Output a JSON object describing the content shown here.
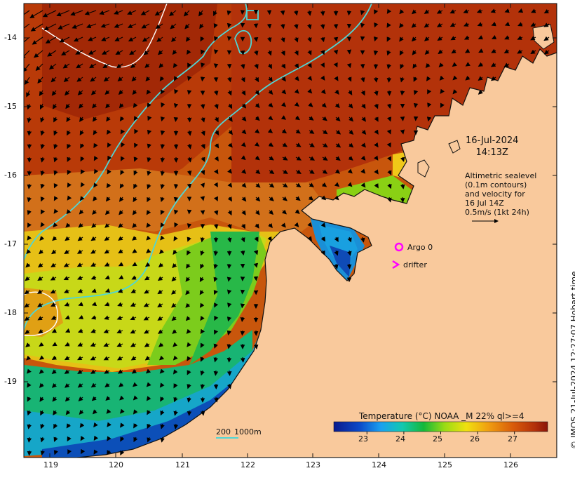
{
  "map": {
    "lon_ticks": [
      "119",
      "120",
      "121",
      "122",
      "123",
      "124",
      "125",
      "126"
    ],
    "lat_ticks": [
      "-14",
      "-15",
      "-16",
      "-17",
      "-18",
      "-19"
    ],
    "timestamp": {
      "date": "16-Jul-2024",
      "time": "14:13Z"
    },
    "altimetry_note": [
      "Altimetric sealevel",
      "(0.1m contours)",
      "and velocity for",
      "16 Jul 14Z",
      "0.5m/s (1kt 24h)"
    ],
    "legend": {
      "argo": "Argo 0",
      "drifter": "drifter",
      "argo_color": "#ff00ff",
      "drifter_color": "#ff00ff"
    },
    "bathymetry": {
      "label_200": "200",
      "label_1000": "1000m",
      "color": "#4fd6d6"
    },
    "copyright": "© IMOS 21-Jul-2024 12:27:07 Hobart time",
    "land_color": "#f9c99c"
  },
  "colorbar": {
    "title": "Temperature (°C) NOAA _M 22% ql>=4",
    "ticks": [
      "23",
      "24",
      "25",
      "26",
      "27"
    ],
    "range_c": [
      22.1,
      27.9
    ]
  }
}
